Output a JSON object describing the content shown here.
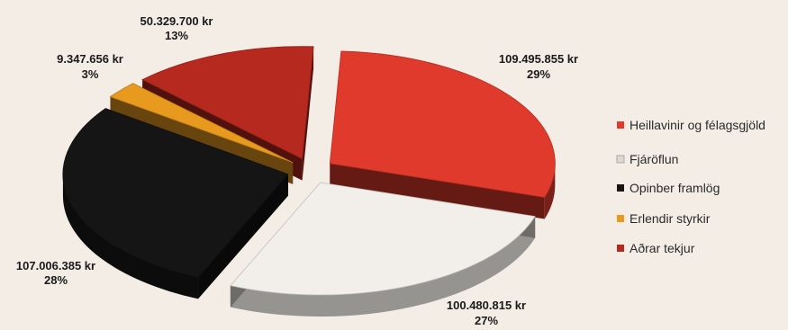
{
  "chart_data": {
    "type": "pie",
    "style": "3d-exploded",
    "legend_position": "right",
    "slices": [
      {
        "name": "Heillavinir og félagsgjöld",
        "value": 109495855,
        "value_label": "109.495.855 kr",
        "percent_label": "29%",
        "color": "#e03a2c"
      },
      {
        "name": "Fjáröflun",
        "value": 100480815,
        "value_label": "100.480.815 kr",
        "percent_label": "27%",
        "color": "#f2efea"
      },
      {
        "name": "Opinber framlög",
        "value": 107006385,
        "value_label": "107.006.385 kr",
        "percent_label": "28%",
        "color": "#151515"
      },
      {
        "name": "Erlendir styrkir",
        "value": 9347656,
        "value_label": "9.347.656 kr",
        "percent_label": "3%",
        "color": "#e89a1e"
      },
      {
        "name": "Aðrar tekjur",
        "value": 50329700,
        "value_label": "50.329.700 kr",
        "percent_label": "13%",
        "color": "#b5291f"
      }
    ]
  }
}
